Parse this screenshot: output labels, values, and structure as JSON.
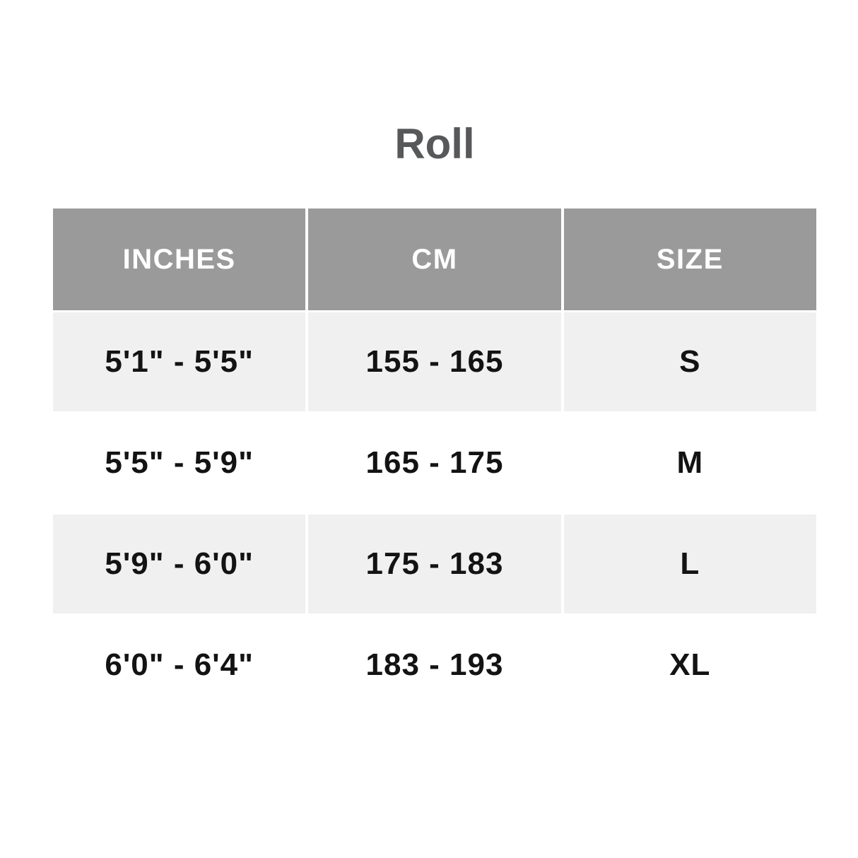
{
  "chart_data": {
    "type": "table",
    "title": "Roll",
    "columns": [
      "INCHES",
      "CM",
      "SIZE"
    ],
    "rows": [
      [
        "5'1\" - 5'5\"",
        "155 - 165",
        "S"
      ],
      [
        "5'5\" - 5'9\"",
        "165 - 175",
        "M"
      ],
      [
        "5'9\" - 6'0\"",
        "175 - 183",
        "L"
      ],
      [
        "6'0\" - 6'4\"",
        "183 - 193",
        "XL"
      ]
    ],
    "layout": {
      "legend": "none",
      "header_position": "top",
      "row_striping": "rows 1 and 3 light gray, rows 2 and 4 white",
      "columns_equal_width": true
    }
  },
  "colors": {
    "page_bg": "#ffffff",
    "title_text": "#57585a",
    "header_bg": "#9a9a9a",
    "header_text": "#ffffff",
    "stripe_row_bg": "#f0f0f1",
    "plain_row_bg": "#ffffff",
    "cell_text": "#131313"
  }
}
